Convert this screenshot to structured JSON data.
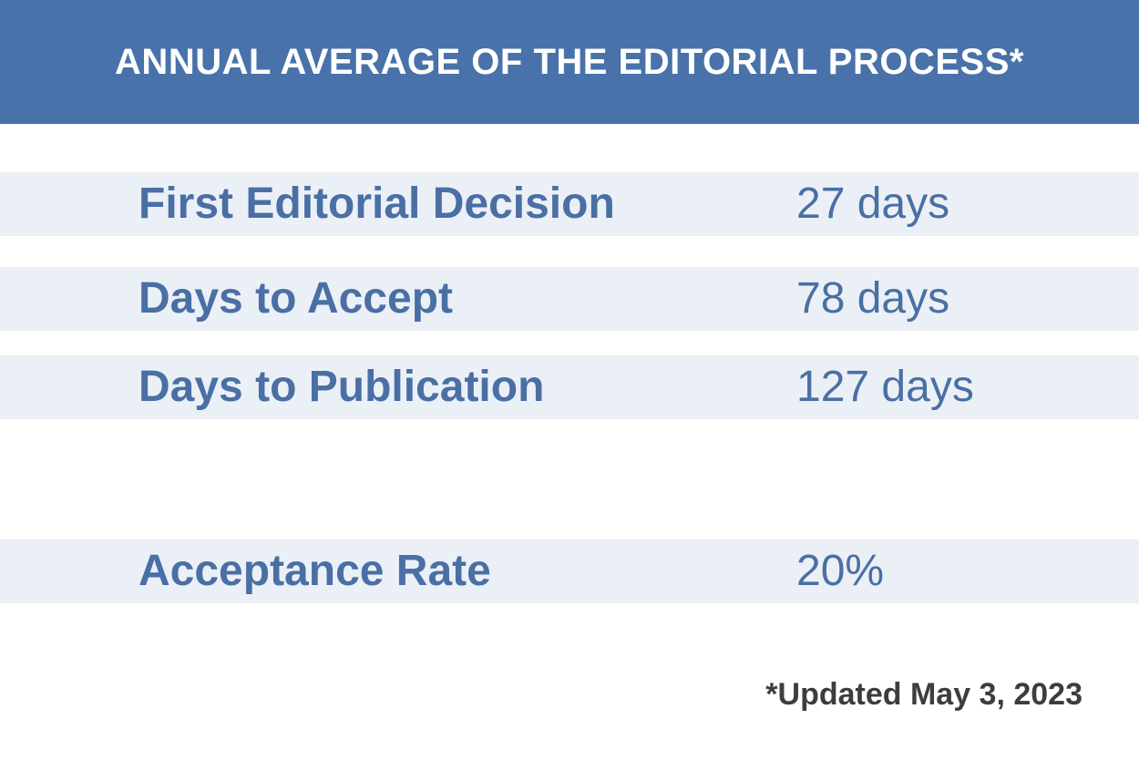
{
  "header": {
    "title": "ANNUAL AVERAGE OF THE EDITORIAL PROCESS*",
    "background_color": "#4872a9"
  },
  "rows": [
    {
      "label": "First Editorial Decision",
      "value": "27 days"
    },
    {
      "label": "Days to Accept",
      "value": "78 days"
    },
    {
      "label": "Days to Publication",
      "value": "127 days"
    },
    {
      "label": "Acceptance Rate",
      "value": "20%"
    }
  ],
  "footnote": "*Updated May 3, 2023",
  "colors": {
    "text_accent": "#4a6fa5",
    "row_background": "#ebf0f6",
    "footnote_text": "#3d3d3d"
  }
}
